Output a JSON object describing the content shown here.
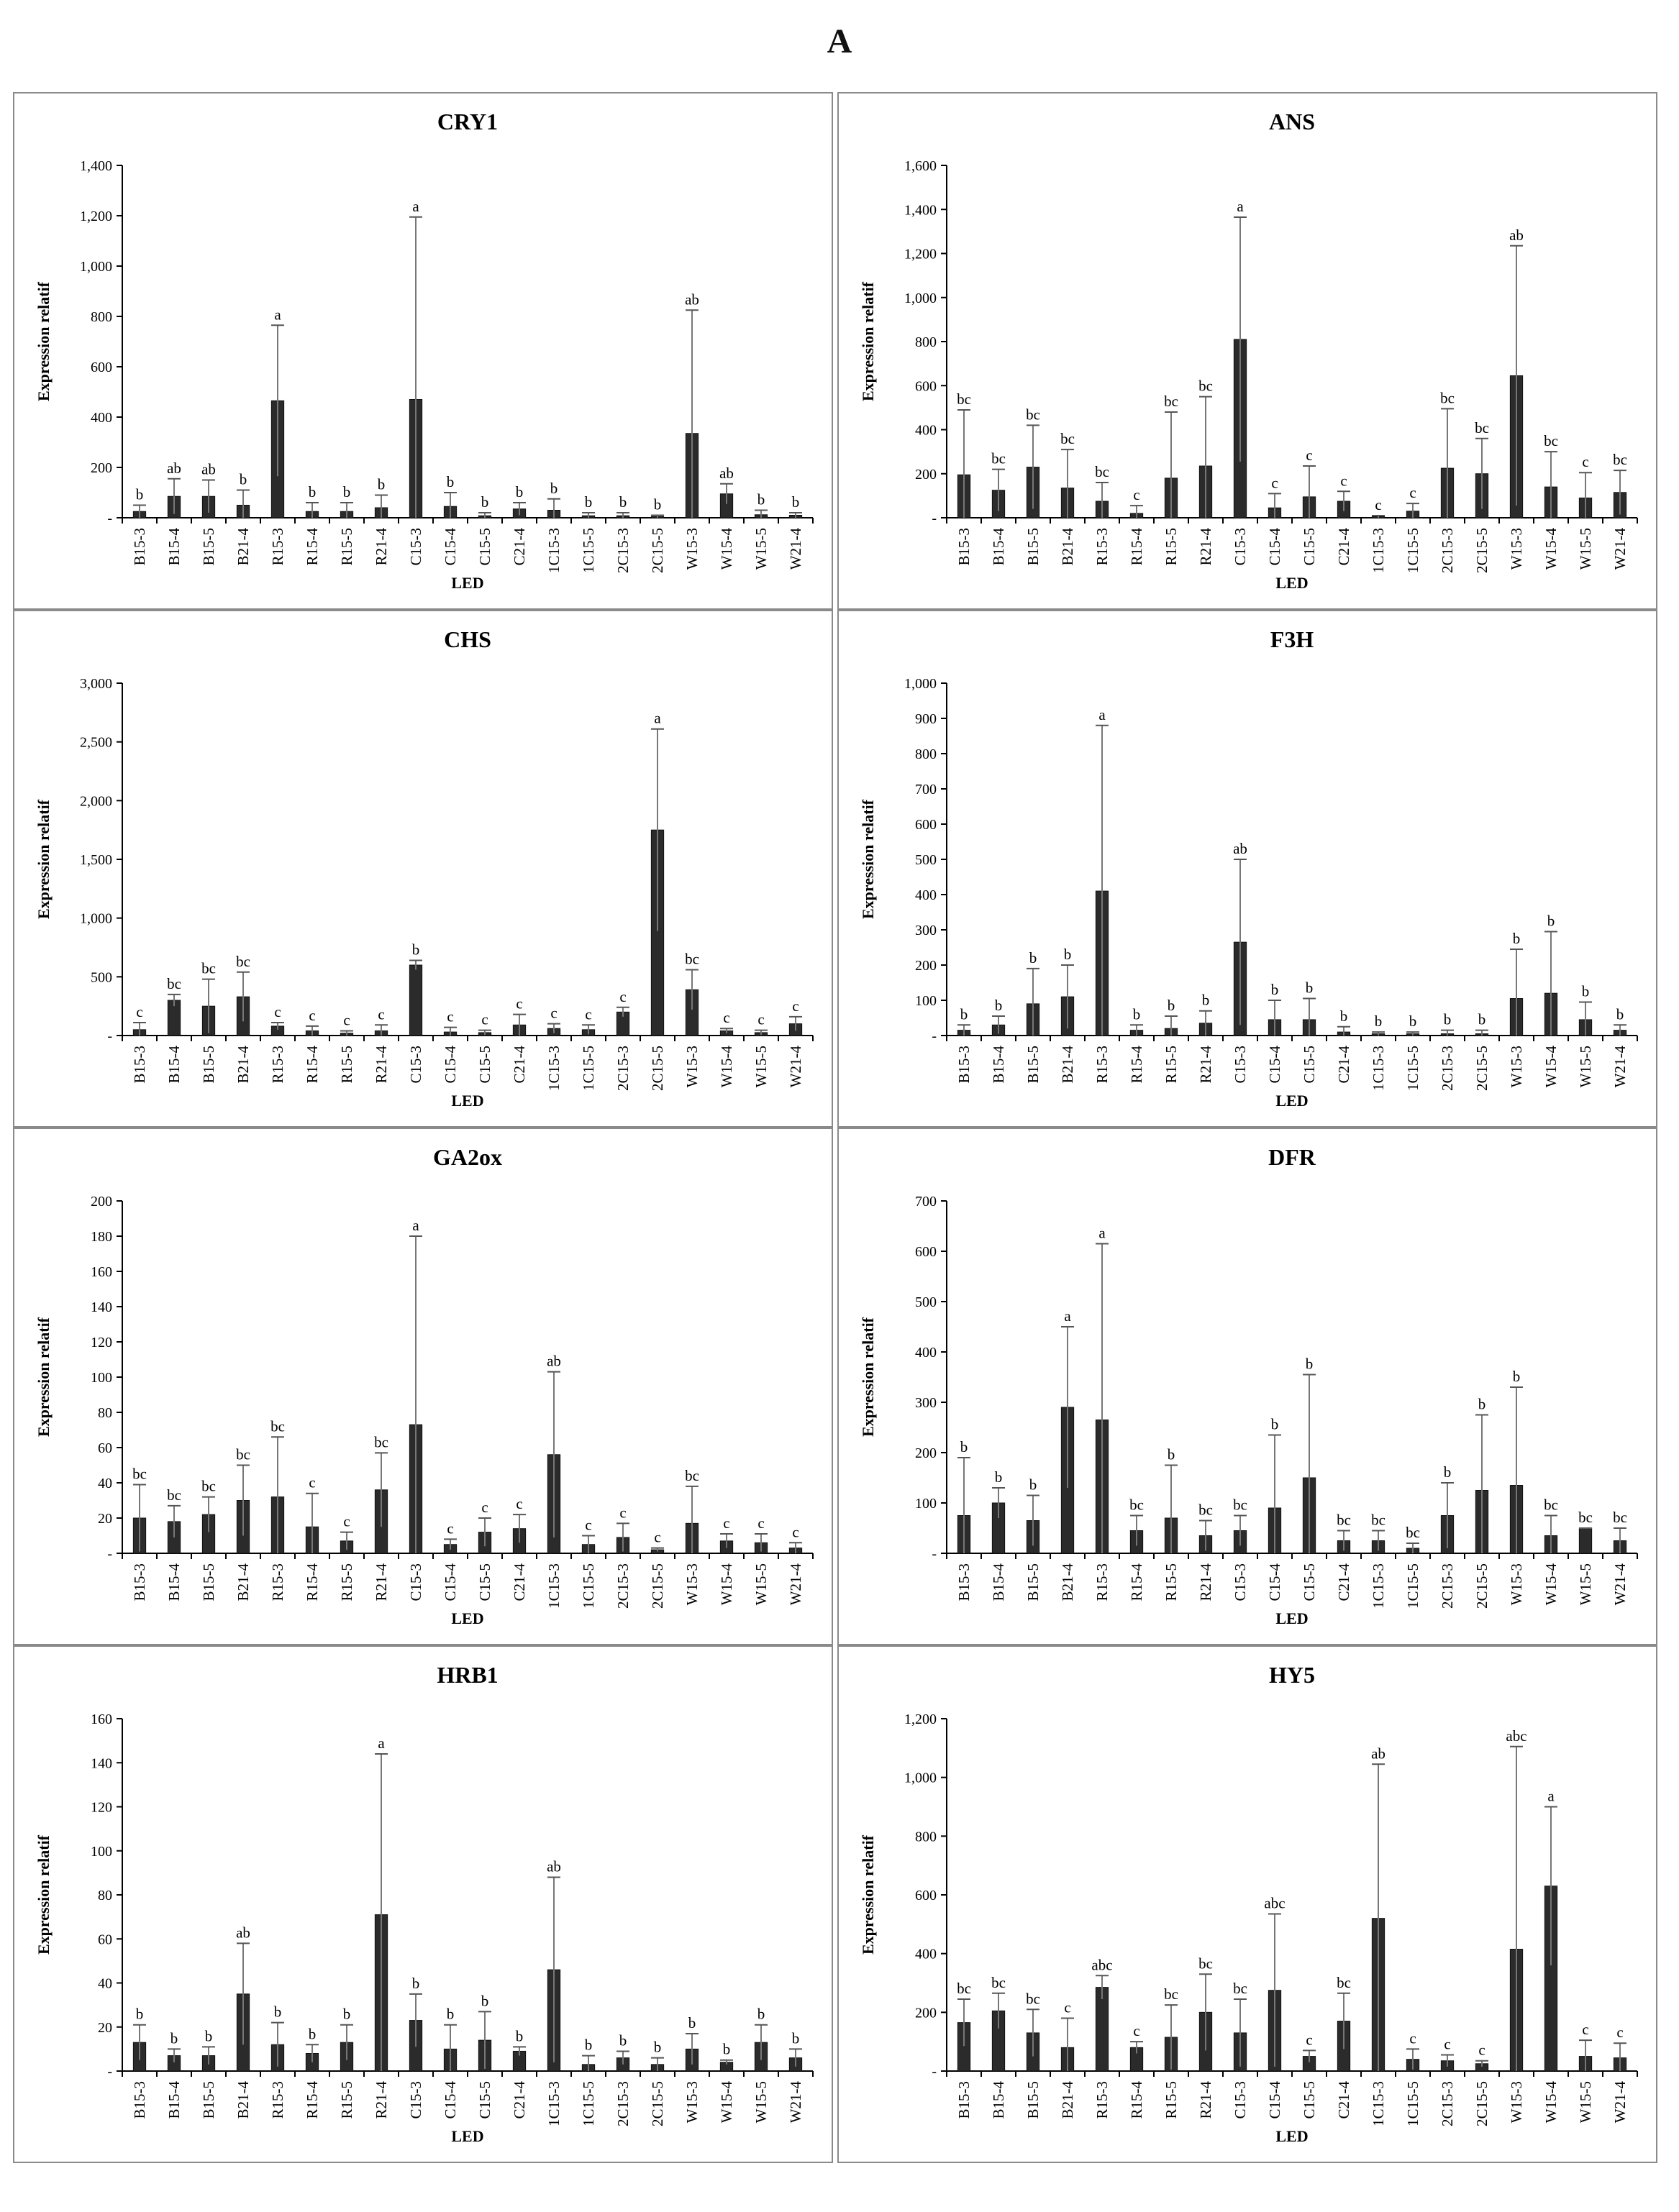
{
  "figure": {
    "label": "A"
  },
  "chart_data": [
    {
      "type": "bar",
      "title": "CRY1",
      "xlabel": "LED",
      "ylabel": "Expression  relatif",
      "ylim": [
        0,
        1400
      ],
      "yticks": [
        0,
        200,
        400,
        600,
        800,
        1000,
        1200,
        1400
      ],
      "ytick_labels": [
        "-",
        "200",
        "400",
        "600",
        "800",
        "1,000",
        "1,200",
        "1,400"
      ],
      "categories": [
        "B15-3",
        "B15-4",
        "B15-5",
        "B21-4",
        "R15-3",
        "R15-4",
        "R15-5",
        "R21-4",
        "C15-3",
        "C15-4",
        "C15-5",
        "C21-4",
        "1C15-3",
        "1C15-5",
        "2C15-3",
        "2C15-5",
        "W15-3",
        "W15-4",
        "W15-5",
        "W21-4"
      ],
      "values": [
        25,
        85,
        85,
        50,
        465,
        25,
        25,
        40,
        470,
        45,
        8,
        35,
        30,
        8,
        8,
        5,
        335,
        95,
        12,
        10
      ],
      "error_upper": [
        50,
        155,
        150,
        110,
        765,
        60,
        60,
        90,
        1195,
        100,
        20,
        60,
        75,
        20,
        20,
        10,
        825,
        135,
        30,
        20
      ],
      "significance": [
        "b",
        "ab",
        "ab",
        "b",
        "a",
        "b",
        "b",
        "b",
        "a",
        "b",
        "b",
        "b",
        "b",
        "b",
        "b",
        "b",
        "ab",
        "ab",
        "b",
        "b"
      ],
      "grid": false,
      "legend": "none"
    },
    {
      "type": "bar",
      "title": "ANS",
      "xlabel": "LED",
      "ylabel": "Expression  relatif",
      "ylim": [
        0,
        1600
      ],
      "yticks": [
        0,
        200,
        400,
        600,
        800,
        1000,
        1200,
        1400,
        1600
      ],
      "ytick_labels": [
        "-",
        "200",
        "400",
        "600",
        "800",
        "1,000",
        "1,200",
        "1,400",
        "1,600"
      ],
      "categories": [
        "B15-3",
        "B15-4",
        "B15-5",
        "B21-4",
        "R15-3",
        "R15-4",
        "R15-5",
        "R21-4",
        "C15-3",
        "C15-4",
        "C15-5",
        "C21-4",
        "1C15-3",
        "1C15-5",
        "2C15-3",
        "2C15-5",
        "W15-3",
        "W15-4",
        "W15-5",
        "W21-4"
      ],
      "values": [
        195,
        125,
        230,
        135,
        75,
        20,
        180,
        235,
        810,
        45,
        95,
        75,
        5,
        30,
        225,
        200,
        645,
        140,
        90,
        115
      ],
      "error_upper": [
        490,
        220,
        420,
        310,
        160,
        55,
        480,
        550,
        1365,
        110,
        235,
        120,
        10,
        65,
        495,
        360,
        1235,
        300,
        205,
        215
      ],
      "significance": [
        "bc",
        "bc",
        "bc",
        "bc",
        "bc",
        "c",
        "bc",
        "bc",
        "a",
        "c",
        "c",
        "c",
        "c",
        "c",
        "bc",
        "bc",
        "ab",
        "bc",
        "c",
        "bc"
      ],
      "grid": false,
      "legend": "none"
    },
    {
      "type": "bar",
      "title": "CHS",
      "xlabel": "LED",
      "ylabel": "Expression  relatif",
      "ylim": [
        0,
        3000
      ],
      "yticks": [
        0,
        500,
        1000,
        1500,
        2000,
        2500,
        3000
      ],
      "ytick_labels": [
        "-",
        "500",
        "1,000",
        "1,500",
        "2,000",
        "2,500",
        "3,000"
      ],
      "categories": [
        "B15-3",
        "B15-4",
        "B15-5",
        "B21-4",
        "R15-3",
        "R15-4",
        "R15-5",
        "R21-4",
        "C15-3",
        "C15-4",
        "C15-5",
        "C21-4",
        "1C15-3",
        "1C15-5",
        "2C15-3",
        "2C15-5",
        "W15-3",
        "W15-4",
        "W15-5",
        "W21-4"
      ],
      "values": [
        50,
        300,
        250,
        330,
        80,
        40,
        20,
        40,
        600,
        30,
        25,
        90,
        60,
        50,
        200,
        1750,
        390,
        40,
        25,
        100
      ],
      "error_upper": [
        110,
        350,
        480,
        540,
        110,
        80,
        40,
        90,
        640,
        70,
        45,
        180,
        100,
        90,
        240,
        2610,
        560,
        60,
        45,
        160
      ],
      "significance": [
        "c",
        "bc",
        "bc",
        "bc",
        "c",
        "c",
        "c",
        "c",
        "b",
        "c",
        "c",
        "c",
        "c",
        "c",
        "c",
        "a",
        "bc",
        "c",
        "c",
        "c"
      ],
      "grid": false,
      "legend": "none"
    },
    {
      "type": "bar",
      "title": "F3H",
      "xlabel": "LED",
      "ylabel": "Expression  relatif",
      "ylim": [
        0,
        1000
      ],
      "yticks": [
        0,
        100,
        200,
        300,
        400,
        500,
        600,
        700,
        800,
        900,
        1000
      ],
      "ytick_labels": [
        "-",
        "100",
        "200",
        "300",
        "400",
        "500",
        "600",
        "700",
        "800",
        "900",
        "1,000"
      ],
      "categories": [
        "B15-3",
        "B15-4",
        "B15-5",
        "B21-4",
        "R15-3",
        "R15-4",
        "R15-5",
        "R21-4",
        "C15-3",
        "C15-4",
        "C15-5",
        "C21-4",
        "1C15-3",
        "1C15-5",
        "2C15-3",
        "2C15-5",
        "W15-3",
        "W15-4",
        "W15-5",
        "W21-4"
      ],
      "values": [
        15,
        30,
        90,
        110,
        410,
        15,
        20,
        35,
        265,
        45,
        45,
        10,
        5,
        5,
        5,
        5,
        105,
        120,
        45,
        15
      ],
      "error_upper": [
        30,
        55,
        190,
        200,
        880,
        30,
        55,
        70,
        500,
        100,
        105,
        25,
        10,
        10,
        15,
        15,
        245,
        295,
        95,
        30
      ],
      "significance": [
        "b",
        "b",
        "b",
        "b",
        "a",
        "b",
        "b",
        "b",
        "ab",
        "b",
        "b",
        "b",
        "b",
        "b",
        "b",
        "b",
        "b",
        "b",
        "b",
        "b"
      ],
      "grid": false,
      "legend": "none"
    },
    {
      "type": "bar",
      "title": "GA2ox",
      "xlabel": "LED",
      "ylabel": "Expression  relatif",
      "ylim": [
        0,
        200
      ],
      "yticks": [
        0,
        20,
        40,
        60,
        80,
        100,
        120,
        140,
        160,
        180,
        200
      ],
      "ytick_labels": [
        "-",
        "20",
        "40",
        "60",
        "80",
        "100",
        "120",
        "140",
        "160",
        "180",
        "200"
      ],
      "categories": [
        "B15-3",
        "B15-4",
        "B15-5",
        "B21-4",
        "R15-3",
        "R15-4",
        "R15-5",
        "R21-4",
        "C15-3",
        "C15-4",
        "C15-5",
        "C21-4",
        "1C15-3",
        "1C15-5",
        "2C15-3",
        "2C15-5",
        "W15-3",
        "W15-4",
        "W15-5",
        "W21-4"
      ],
      "values": [
        20,
        18,
        22,
        30,
        32,
        15,
        7,
        36,
        73,
        5,
        12,
        14,
        56,
        5,
        9,
        2,
        17,
        7,
        6,
        3
      ],
      "error_upper": [
        39,
        27,
        32,
        50,
        66,
        34,
        12,
        57,
        180,
        8,
        20,
        22,
        103,
        10,
        17,
        3,
        38,
        11,
        11,
        6
      ],
      "significance": [
        "bc",
        "bc",
        "bc",
        "bc",
        "bc",
        "c",
        "c",
        "bc",
        "a",
        "c",
        "c",
        "c",
        "ab",
        "c",
        "c",
        "c",
        "bc",
        "c",
        "c",
        "c"
      ],
      "grid": false,
      "legend": "none"
    },
    {
      "type": "bar",
      "title": "DFR",
      "xlabel": "LED",
      "ylabel": "Expression  relatif",
      "ylim": [
        0,
        700
      ],
      "yticks": [
        0,
        100,
        200,
        300,
        400,
        500,
        600,
        700
      ],
      "ytick_labels": [
        "-",
        "100",
        "200",
        "300",
        "400",
        "500",
        "600",
        "700"
      ],
      "categories": [
        "B15-3",
        "B15-4",
        "B15-5",
        "B21-4",
        "R15-3",
        "R15-4",
        "R15-5",
        "R21-4",
        "C15-3",
        "C15-4",
        "C15-5",
        "C21-4",
        "1C15-3",
        "1C15-5",
        "2C15-3",
        "2C15-5",
        "W15-3",
        "W15-4",
        "W15-5",
        "W21-4"
      ],
      "values": [
        75,
        100,
        65,
        290,
        265,
        45,
        70,
        35,
        45,
        90,
        150,
        25,
        25,
        10,
        75,
        125,
        135,
        35,
        50,
        25
      ],
      "error_upper": [
        190,
        130,
        115,
        450,
        615,
        75,
        175,
        65,
        75,
        235,
        355,
        45,
        45,
        20,
        140,
        275,
        330,
        75,
        50,
        50
      ],
      "significance": [
        "b",
        "b",
        "b",
        "a",
        "a",
        "bc",
        "b",
        "bc",
        "bc",
        "b",
        "b",
        "bc",
        "bc",
        "bc",
        "b",
        "b",
        "b",
        "bc",
        "bc",
        "bc"
      ],
      "grid": false,
      "legend": "none"
    },
    {
      "type": "bar",
      "title": "HRB1",
      "xlabel": "LED",
      "ylabel": "Expression  relatif",
      "ylim": [
        0,
        160
      ],
      "yticks": [
        0,
        20,
        40,
        60,
        80,
        100,
        120,
        140,
        160
      ],
      "ytick_labels": [
        "-",
        "20",
        "40",
        "60",
        "80",
        "100",
        "120",
        "140",
        "160"
      ],
      "categories": [
        "B15-3",
        "B15-4",
        "B15-5",
        "B21-4",
        "R15-3",
        "R15-4",
        "R15-5",
        "R21-4",
        "C15-3",
        "C15-4",
        "C15-5",
        "C21-4",
        "1C15-3",
        "1C15-5",
        "2C15-3",
        "2C15-5",
        "W15-3",
        "W15-4",
        "W15-5",
        "W21-4"
      ],
      "values": [
        13,
        7,
        7,
        35,
        12,
        8,
        13,
        71,
        23,
        10,
        14,
        9,
        46,
        3,
        6,
        3,
        10,
        4,
        13,
        6
      ],
      "error_upper": [
        21,
        10,
        11,
        58,
        22,
        12,
        21,
        144,
        35,
        21,
        27,
        11,
        88,
        7,
        9,
        6,
        17,
        5,
        21,
        10
      ],
      "significance": [
        "b",
        "b",
        "b",
        "ab",
        "b",
        "b",
        "b",
        "a",
        "b",
        "b",
        "b",
        "b",
        "ab",
        "b",
        "b",
        "b",
        "b",
        "b",
        "b",
        "b"
      ],
      "grid": false,
      "legend": "none"
    },
    {
      "type": "bar",
      "title": "HY5",
      "xlabel": "LED",
      "ylabel": "Expression  relatif",
      "ylim": [
        0,
        1200
      ],
      "yticks": [
        0,
        200,
        400,
        600,
        800,
        1000,
        1200
      ],
      "ytick_labels": [
        "-",
        "200",
        "400",
        "600",
        "800",
        "1,000",
        "1,200"
      ],
      "categories": [
        "B15-3",
        "B15-4",
        "B15-5",
        "B21-4",
        "R15-3",
        "R15-4",
        "R15-5",
        "R21-4",
        "C15-3",
        "C15-4",
        "C15-5",
        "C21-4",
        "1C15-3",
        "1C15-5",
        "2C15-3",
        "2C15-5",
        "W15-3",
        "W15-4",
        "W15-5",
        "W21-4"
      ],
      "values": [
        165,
        205,
        130,
        80,
        285,
        80,
        115,
        200,
        130,
        275,
        50,
        170,
        520,
        40,
        35,
        25,
        415,
        630,
        50,
        45
      ],
      "error_upper": [
        245,
        265,
        210,
        180,
        325,
        100,
        225,
        330,
        245,
        535,
        70,
        265,
        1045,
        75,
        55,
        35,
        1105,
        900,
        105,
        95
      ],
      "significance": [
        "bc",
        "bc",
        "bc",
        "c",
        "abc",
        "c",
        "bc",
        "bc",
        "bc",
        "abc",
        "c",
        "bc",
        "ab",
        "c",
        "c",
        "c",
        "abc",
        "a",
        "c",
        "c"
      ],
      "grid": false,
      "legend": "none"
    }
  ]
}
